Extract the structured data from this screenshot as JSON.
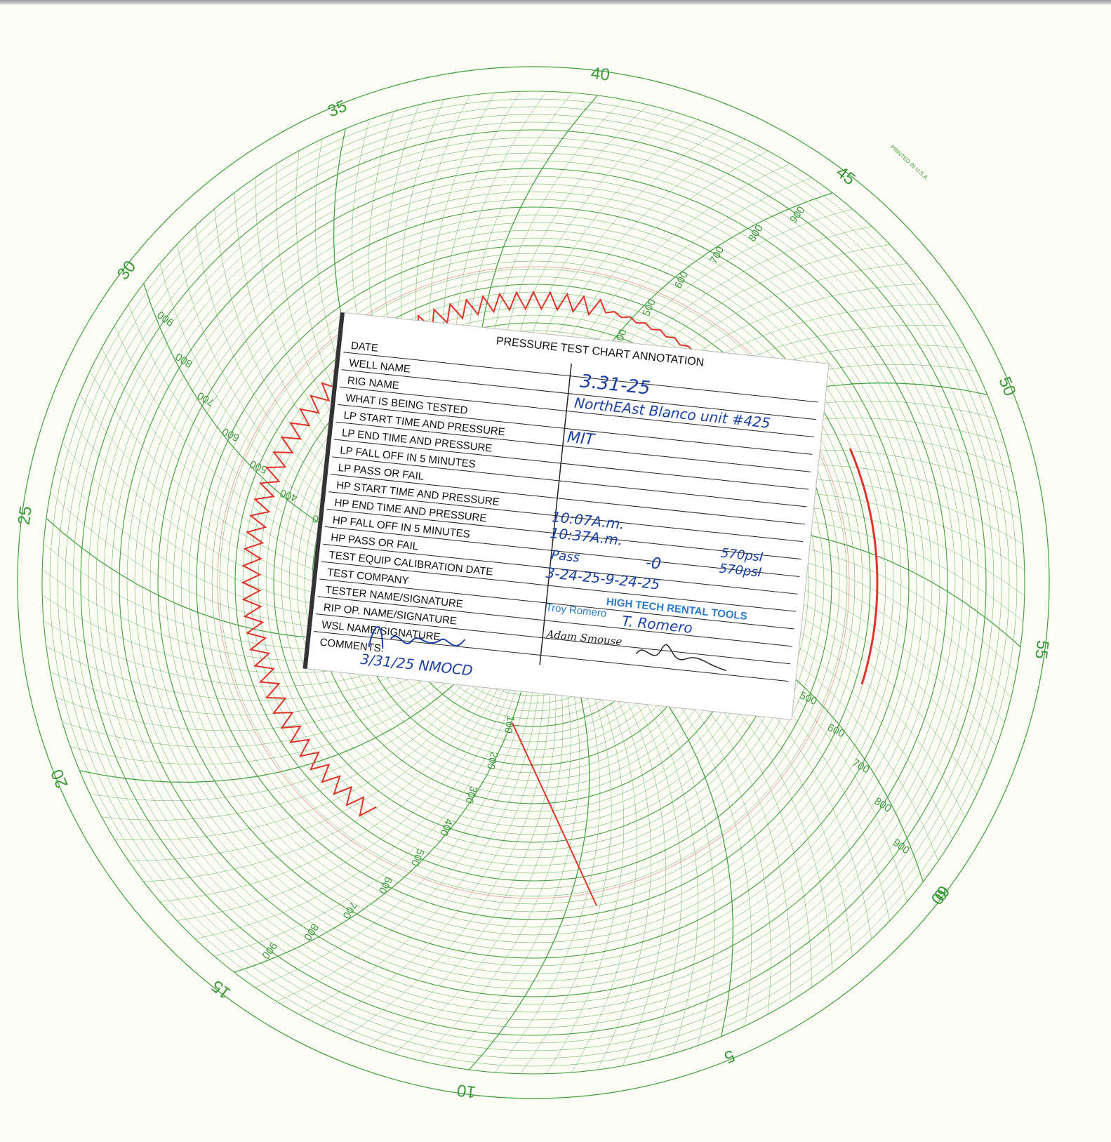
{
  "chart_data": {
    "type": "circular-pressure-chart",
    "time_labels": [
      "0",
      "5",
      "10",
      "15",
      "20",
      "25",
      "30",
      "35",
      "40",
      "45",
      "50",
      "55",
      "60"
    ],
    "pressure_labels": [
      "100",
      "200",
      "300",
      "400",
      "500",
      "600",
      "700",
      "800",
      "900"
    ],
    "printed_note": "PRINTED IN U.S.A.",
    "grid_color": "#3aa03a",
    "trace_color": "#e3322b"
  },
  "card": {
    "title": "PRESSURE TEST CHART ANNOTATION",
    "fields": [
      "DATE",
      "WELL NAME",
      "RIG NAME",
      "WHAT IS BEING TESTED",
      "LP START TIME AND PRESSURE",
      "LP END TIME AND PRESSURE",
      "LP FALL OFF IN 5 MINUTES",
      "LP PASS OR FAIL",
      "HP START TIME AND PRESSURE",
      "HP END TIME AND PRESSURE",
      "HP FALL OFF IN 5 MINUTES",
      "HP PASS OR FAIL",
      "TEST EQUIP CALIBRATION DATE",
      "TEST COMPANY",
      "TESTER NAME/SIGNATURE",
      "RIP OP. NAME/SIGNATURE",
      "WSL NAME/SIGNATURE",
      "COMMENTS:"
    ],
    "values": {
      "date": "3.31-25",
      "well_name": "NorthEAst Blanco unit #425",
      "what_tested": "MIT",
      "hp_start_time": "10:07A.m.",
      "hp_start_pressure": "570psI",
      "hp_end_time": "10:37A.m.",
      "hp_end_pressure": "570psI",
      "hp_fall_off": "-0",
      "hp_pass_fail": "Pass",
      "calibration_date": "3-24-25-9-24-25",
      "test_company": "HIGH TECH RENTAL TOOLS",
      "tester_name": "Troy Romero",
      "tester_signature": "T. Romero",
      "rig_op_name": "Adam Smouse",
      "comments_date": "3/31/25 NMOCD"
    },
    "signature_color": "#1a3fa6"
  }
}
